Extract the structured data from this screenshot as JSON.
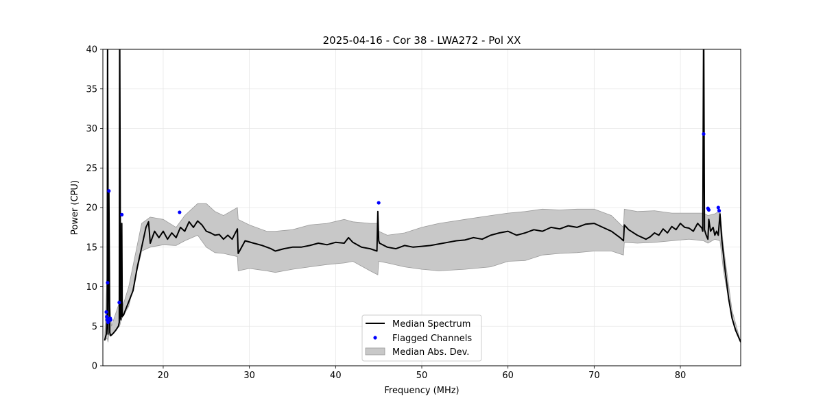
{
  "chart_data": {
    "type": "line",
    "title": "2025-04-16 - Cor 38 - LWA272 - Pol XX",
    "xlabel": "Frequency (MHz)",
    "ylabel": "Power (CPU)",
    "xlim": [
      13,
      87
    ],
    "ylim": [
      0,
      40
    ],
    "xticks": [
      20,
      30,
      40,
      50,
      60,
      70,
      80
    ],
    "yticks": [
      0,
      5,
      10,
      15,
      20,
      25,
      30,
      35,
      40
    ],
    "grid": true,
    "legend_position": "bottom-center",
    "series": [
      {
        "name": "Median Spectrum",
        "kind": "line",
        "color": "#000000",
        "x": [
          13.2,
          13.4,
          13.5,
          13.55,
          13.6,
          13.7,
          13.8,
          13.9,
          14.0,
          14.2,
          14.5,
          14.8,
          14.9,
          14.95,
          15.05,
          15.1,
          15.2,
          15.25,
          15.35,
          15.4,
          15.6,
          15.9,
          16.5,
          17.0,
          17.5,
          18.0,
          18.3,
          18.5,
          19.0,
          19.5,
          20.0,
          20.5,
          21.0,
          21.5,
          22.0,
          22.5,
          23.0,
          23.5,
          24.0,
          24.5,
          25.0,
          25.5,
          26.0,
          26.5,
          27.0,
          27.5,
          28.0,
          28.6,
          28.7,
          29.5,
          30.5,
          31.5,
          32.5,
          33.0,
          34.0,
          35.0,
          36.0,
          37.0,
          38.0,
          39.0,
          40.0,
          41.0,
          41.5,
          42.0,
          43.0,
          44.0,
          44.8,
          44.9,
          45.0,
          45.1,
          46.0,
          47.0,
          48.0,
          49.0,
          50.0,
          51.0,
          52.0,
          53.0,
          54.0,
          55.0,
          56.0,
          57.0,
          58.0,
          59.0,
          60.0,
          61.0,
          62.0,
          63.0,
          64.0,
          65.0,
          66.0,
          67.0,
          68.0,
          69.0,
          70.0,
          71.0,
          72.0,
          73.0,
          73.4,
          73.5,
          74.0,
          75.0,
          76.0,
          76.5,
          77.0,
          77.5,
          78.0,
          78.5,
          79.0,
          79.5,
          80.0,
          80.5,
          81.0,
          81.5,
          82.0,
          82.5,
          82.6,
          82.7,
          82.8,
          83.0,
          83.2,
          83.3,
          83.5,
          83.8,
          84.0,
          84.2,
          84.4,
          84.6,
          84.8,
          85.2,
          85.6,
          86.0,
          86.4,
          86.8,
          87.0
        ],
        "values": [
          3.2,
          4.0,
          6.0,
          45.0,
          4.0,
          22.0,
          4.2,
          3.8,
          3.9,
          4.1,
          4.5,
          5.0,
          5.5,
          45.0,
          6.0,
          5.8,
          18.0,
          6.2,
          6.5,
          6.4,
          7.0,
          7.8,
          9.5,
          12.5,
          15.0,
          17.5,
          18.2,
          15.5,
          17.0,
          16.2,
          17.0,
          16.0,
          16.8,
          16.2,
          17.5,
          17.0,
          18.2,
          17.5,
          18.3,
          17.8,
          17.0,
          16.8,
          16.5,
          16.6,
          16.0,
          16.5,
          16.0,
          17.3,
          14.2,
          15.8,
          15.5,
          15.2,
          14.8,
          14.5,
          14.8,
          15.0,
          15.0,
          15.2,
          15.5,
          15.3,
          15.6,
          15.5,
          16.2,
          15.6,
          15.0,
          14.8,
          14.5,
          19.5,
          15.8,
          15.5,
          15.0,
          14.8,
          15.2,
          15.0,
          15.1,
          15.2,
          15.4,
          15.6,
          15.8,
          15.9,
          16.2,
          16.0,
          16.5,
          16.8,
          17.0,
          16.5,
          16.8,
          17.2,
          17.0,
          17.5,
          17.3,
          17.7,
          17.5,
          17.9,
          18.0,
          17.5,
          17.0,
          16.2,
          15.8,
          17.8,
          17.2,
          16.5,
          16.0,
          16.3,
          16.8,
          16.5,
          17.3,
          16.8,
          17.6,
          17.2,
          18.0,
          17.5,
          17.4,
          17.0,
          18.0,
          17.4,
          17.0,
          45.0,
          17.2,
          16.5,
          16.0,
          18.5,
          17.0,
          17.5,
          16.5,
          17.0,
          16.5,
          19.2,
          16.0,
          12.0,
          8.5,
          6.0,
          4.5,
          3.5,
          3.0
        ]
      },
      {
        "name": "Flagged Channels",
        "kind": "points",
        "color": "#0000ff",
        "x": [
          13.4,
          13.45,
          13.5,
          13.55,
          13.6,
          13.7,
          13.75,
          13.85,
          13.9,
          14.9,
          15.2,
          21.9,
          45.0,
          82.7,
          83.2,
          83.3,
          84.4,
          84.5
        ],
        "values": [
          6.8,
          6.2,
          5.8,
          10.5,
          5.5,
          22.1,
          5.9,
          6.0,
          5.8,
          8.0,
          19.1,
          19.4,
          20.6,
          29.3,
          19.9,
          19.7,
          20.0,
          19.6
        ]
      },
      {
        "name": "Median Abs. Dev.",
        "kind": "band",
        "color": "#c8c8c8",
        "x": [
          13.2,
          13.5,
          13.6,
          13.7,
          13.8,
          14.0,
          14.9,
          15.0,
          15.1,
          15.3,
          16.0,
          17.5,
          18.5,
          20.0,
          21.5,
          22.5,
          24.0,
          25.0,
          26.0,
          27.0,
          28.6,
          28.7,
          30.0,
          32.0,
          33.0,
          35.0,
          37.0,
          39.0,
          41.0,
          42.0,
          44.0,
          44.9,
          45.0,
          46.0,
          48.0,
          50.0,
          52.0,
          55.0,
          58.0,
          60.0,
          62.0,
          64.0,
          66.0,
          68.0,
          70.0,
          72.0,
          73.4,
          73.5,
          75.0,
          77.0,
          79.0,
          81.0,
          82.7,
          83.2,
          84.0,
          84.6,
          85.0,
          86.0,
          87.0
        ],
        "lower": [
          3.2,
          3.5,
          3.0,
          4.0,
          3.8,
          3.9,
          5.0,
          5.2,
          5.8,
          6.2,
          7.5,
          14.5,
          15.0,
          15.3,
          15.2,
          15.8,
          16.5,
          15.0,
          14.3,
          14.2,
          13.8,
          12.0,
          12.3,
          12.0,
          11.8,
          12.2,
          12.5,
          12.8,
          13.0,
          13.2,
          12.0,
          11.5,
          13.2,
          13.0,
          12.5,
          12.2,
          12.0,
          12.2,
          12.5,
          13.2,
          13.3,
          14.0,
          14.2,
          14.3,
          14.5,
          14.5,
          14.0,
          15.6,
          15.5,
          15.6,
          15.8,
          16.0,
          15.8,
          15.5,
          16.0,
          15.8,
          12.0,
          6.0,
          3.0
        ],
        "upper": [
          3.2,
          12.0,
          35.0,
          22.0,
          8.0,
          5.0,
          8.0,
          30.0,
          7.5,
          7.5,
          10.0,
          18.0,
          18.8,
          18.5,
          17.5,
          19.0,
          20.5,
          20.5,
          19.5,
          19.0,
          20.0,
          18.5,
          17.8,
          17.0,
          17.0,
          17.2,
          17.8,
          18.0,
          18.5,
          18.2,
          18.0,
          18.0,
          17.0,
          16.5,
          16.8,
          17.5,
          18.0,
          18.5,
          19.0,
          19.3,
          19.5,
          19.8,
          19.7,
          19.8,
          19.8,
          19.0,
          17.5,
          19.8,
          19.5,
          19.6,
          19.3,
          19.3,
          19.3,
          19.0,
          19.2,
          19.6,
          15.0,
          7.0,
          3.0
        ]
      }
    ]
  }
}
